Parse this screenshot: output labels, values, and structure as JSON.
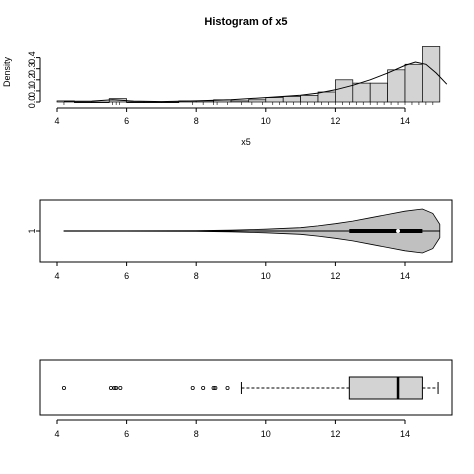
{
  "chart_data": [
    {
      "type": "histogram",
      "title": "Histogram of x5",
      "xlabel": "x5",
      "ylabel": "Density",
      "xlim": [
        4,
        15
      ],
      "ylim": [
        0,
        0.5
      ],
      "x_ticks": [
        "4",
        "6",
        "8",
        "10",
        "12",
        "14"
      ],
      "y_ticks": [
        "0.0",
        "0.1",
        "0.2",
        "0.3",
        "0.4"
      ],
      "bins": [
        {
          "x0": 4.0,
          "x1": 4.5,
          "density": 0.01
        },
        {
          "x0": 4.5,
          "x1": 5.0,
          "density": 0.0
        },
        {
          "x0": 5.0,
          "x1": 5.5,
          "density": 0.0
        },
        {
          "x0": 5.5,
          "x1": 6.0,
          "density": 0.03
        },
        {
          "x0": 6.0,
          "x1": 6.5,
          "density": 0.0
        },
        {
          "x0": 6.5,
          "x1": 7.0,
          "density": 0.0
        },
        {
          "x0": 7.0,
          "x1": 7.5,
          "density": 0.0
        },
        {
          "x0": 7.5,
          "x1": 8.0,
          "density": 0.01
        },
        {
          "x0": 8.0,
          "x1": 8.5,
          "density": 0.01
        },
        {
          "x0": 8.5,
          "x1": 9.0,
          "density": 0.02
        },
        {
          "x0": 9.0,
          "x1": 9.5,
          "density": 0.01
        },
        {
          "x0": 9.5,
          "x1": 10.0,
          "density": 0.02
        },
        {
          "x0": 10.0,
          "x1": 10.5,
          "density": 0.04
        },
        {
          "x0": 10.5,
          "x1": 11.0,
          "density": 0.05
        },
        {
          "x0": 11.0,
          "x1": 11.5,
          "density": 0.06
        },
        {
          "x0": 11.5,
          "x1": 12.0,
          "density": 0.09
        },
        {
          "x0": 12.0,
          "x1": 12.5,
          "density": 0.2
        },
        {
          "x0": 12.5,
          "x1": 13.0,
          "density": 0.17
        },
        {
          "x0": 13.0,
          "x1": 13.5,
          "density": 0.17
        },
        {
          "x0": 13.5,
          "x1": 14.0,
          "density": 0.29
        },
        {
          "x0": 14.0,
          "x1": 14.5,
          "density": 0.34
        },
        {
          "x0": 14.5,
          "x1": 15.0,
          "density": 0.5
        }
      ],
      "density_curve": {
        "x": [
          4.2,
          5.0,
          5.6,
          6.2,
          7.0,
          8.0,
          9.0,
          10.0,
          11.0,
          11.5,
          12.0,
          12.5,
          13.0,
          13.5,
          14.0,
          14.3,
          14.6,
          14.9,
          15.2
        ],
        "y": [
          0.005,
          0.008,
          0.02,
          0.008,
          0.004,
          0.01,
          0.02,
          0.04,
          0.06,
          0.08,
          0.11,
          0.15,
          0.2,
          0.26,
          0.33,
          0.36,
          0.34,
          0.26,
          0.16
        ]
      },
      "rug": [
        4.2,
        5.6,
        5.7,
        5.8,
        7.9,
        8.2,
        8.5,
        8.6,
        8.9,
        9.3,
        9.6,
        9.9,
        10.2,
        10.4,
        10.6,
        10.8,
        11.0,
        11.2,
        11.4,
        11.6,
        11.8,
        12.0,
        12.2,
        12.4,
        12.6,
        12.8,
        13.0,
        13.2,
        13.4,
        13.6,
        13.8,
        14.0,
        14.2,
        14.4,
        14.6,
        14.8
      ]
    },
    {
      "type": "violin",
      "xlim": [
        4,
        15
      ],
      "x_ticks": [
        "4",
        "6",
        "8",
        "10",
        "12",
        "14"
      ],
      "y_ticks": [
        "1"
      ],
      "profile": {
        "x": [
          4.2,
          6.0,
          8.0,
          9.0,
          10.0,
          11.0,
          11.5,
          12.0,
          12.5,
          13.0,
          13.5,
          14.0,
          14.5,
          14.8,
          15.0
        ],
        "halfwidth": [
          0.01,
          0.01,
          0.02,
          0.04,
          0.08,
          0.15,
          0.23,
          0.33,
          0.45,
          0.6,
          0.75,
          0.9,
          1.0,
          0.8,
          0.3
        ]
      },
      "q1": 12.4,
      "median": 13.8,
      "q3": 14.5,
      "whisker_low": 4.2,
      "whisker_high": 15.0
    },
    {
      "type": "boxplot",
      "xlim": [
        4,
        15
      ],
      "x_ticks": [
        "4",
        "6",
        "8",
        "10",
        "12",
        "14"
      ],
      "q1": 12.4,
      "median": 13.8,
      "q3": 14.5,
      "whisker_low": 9.3,
      "whisker_high": 14.95,
      "outliers": [
        4.2,
        5.55,
        5.65,
        5.7,
        5.82,
        7.9,
        8.2,
        8.5,
        8.55,
        8.9
      ]
    }
  ],
  "colors": {
    "fill": "#d3d3d3",
    "line": "#000000",
    "median_dot": "#ffffff"
  }
}
